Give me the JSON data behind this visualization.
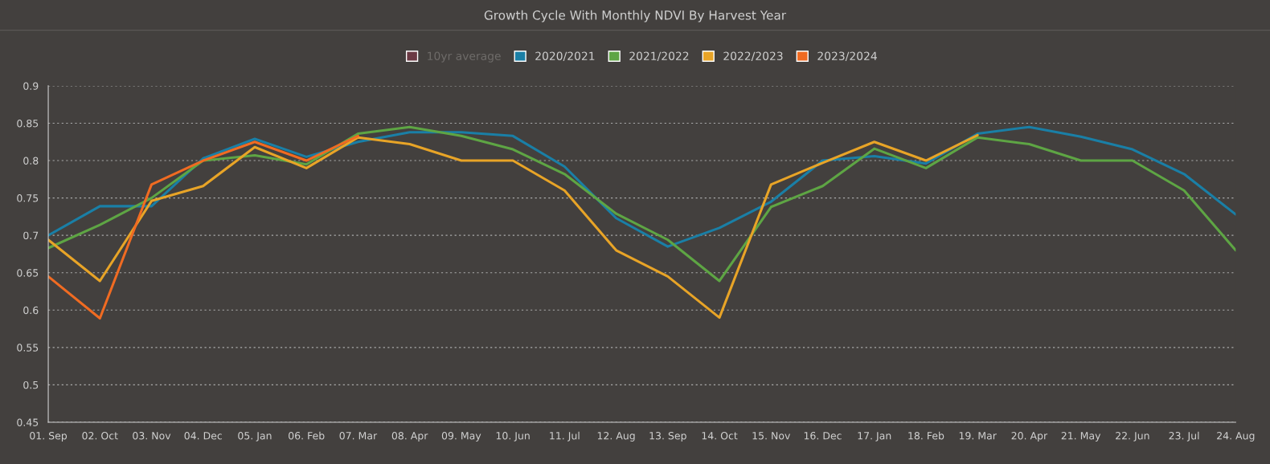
{
  "chart_data": {
    "type": "line",
    "title": "Growth Cycle With Monthly NDVI By Harvest Year",
    "categories": [
      "01. Sep",
      "02. Oct",
      "03. Nov",
      "04. Dec",
      "05. Jan",
      "06. Feb",
      "07. Mar",
      "08. Apr",
      "09. May",
      "10. Jun",
      "11. Jul",
      "12. Aug",
      "13. Sep",
      "14. Oct",
      "15. Nov",
      "16. Dec",
      "17. Jan",
      "18. Feb",
      "19. Mar",
      "20. Apr",
      "21. May",
      "22. Jun",
      "23. Jul",
      "24. Aug"
    ],
    "series": [
      {
        "name": "10yr average",
        "color": "#6b3a44",
        "values": [
          null,
          null,
          null,
          null,
          null,
          null,
          null,
          null,
          null,
          null,
          null,
          null,
          null,
          null,
          null,
          null,
          null,
          null,
          null,
          null,
          null,
          null,
          null,
          null
        ]
      },
      {
        "name": "2020/2021",
        "color": "#1a7fa6",
        "values": [
          0.7,
          0.739,
          0.739,
          0.803,
          0.829,
          0.805,
          0.825,
          0.838,
          0.838,
          0.833,
          0.792,
          0.723,
          0.685,
          0.71,
          0.745,
          0.8,
          0.806,
          0.796,
          0.836,
          0.845,
          0.832,
          0.815,
          0.782,
          0.728
        ]
      },
      {
        "name": "2021/2022",
        "color": "#5ea544",
        "values": [
          0.683,
          0.714,
          0.75,
          0.8,
          0.807,
          0.795,
          0.836,
          0.845,
          0.833,
          0.815,
          0.782,
          0.729,
          0.694,
          0.639,
          0.738,
          0.766,
          0.816,
          0.79,
          0.831,
          0.822,
          0.8,
          0.8,
          0.76,
          0.68
        ]
      },
      {
        "name": "2022/2023",
        "color": "#e8a427",
        "values": [
          0.694,
          0.639,
          0.746,
          0.766,
          0.818,
          0.79,
          0.831,
          0.822,
          0.8,
          0.8,
          0.76,
          0.68,
          0.645,
          0.59,
          0.768,
          0.797,
          0.825,
          0.8,
          0.834,
          null,
          null,
          null,
          null,
          null
        ]
      },
      {
        "name": "2023/2024",
        "color": "#f06b22",
        "values": [
          0.645,
          0.589,
          0.768,
          0.8,
          0.825,
          0.8,
          0.833,
          null,
          null,
          null,
          null,
          null,
          null,
          null,
          null,
          null,
          null,
          null,
          null,
          null,
          null,
          null,
          null,
          null
        ]
      }
    ],
    "ylim": [
      0.45,
      0.9
    ],
    "yticks": [
      0.45,
      0.5,
      0.55,
      0.6,
      0.65,
      0.7,
      0.75,
      0.8,
      0.85,
      0.9
    ],
    "grid": "y",
    "legend": "top",
    "line_style": "solid",
    "marker": "none"
  }
}
